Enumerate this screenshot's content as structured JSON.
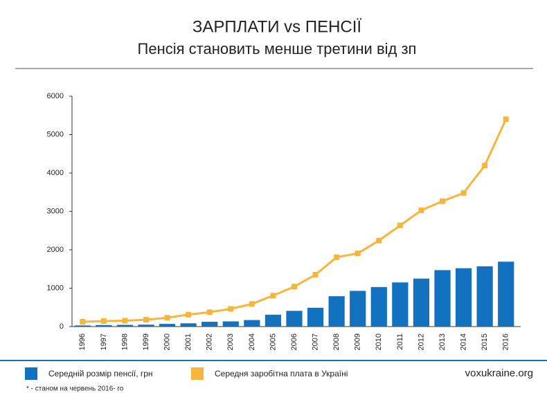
{
  "chart_data": {
    "type": "combo",
    "title": "ЗАРПЛАТИ vs ПЕНСІЇ",
    "subtitle": "Пенсія становить менше третини від зп",
    "categories": [
      "1996",
      "1997",
      "1998",
      "1999",
      "2000",
      "2001",
      "2002",
      "2003",
      "2004",
      "2005",
      "2006",
      "2007",
      "2008",
      "2009",
      "2010",
      "2011",
      "2012",
      "2013",
      "2014",
      "2015",
      "2016"
    ],
    "series": [
      {
        "name": "Середній розмір пенсії, грн",
        "type": "bar",
        "color": "#1372c0",
        "values": [
          30,
          40,
          45,
          50,
          70,
          85,
          125,
          135,
          170,
          310,
          410,
          490,
          790,
          930,
          1030,
          1150,
          1250,
          1470,
          1520,
          1570,
          1690
        ]
      },
      {
        "name": "Середня заробітна плата в Україні",
        "type": "line",
        "color": "#f6b53c",
        "values": [
          126,
          143,
          153,
          178,
          230,
          311,
          376,
          462,
          590,
          806,
          1041,
          1351,
          1806,
          1906,
          2239,
          2633,
          3026,
          3265,
          3480,
          4195,
          5400
        ]
      }
    ],
    "ylim": [
      0,
      6000
    ],
    "yticks": [
      0,
      1000,
      2000,
      3000,
      4000,
      5000,
      6000
    ],
    "source": "voxukraine.org",
    "note": "* - станом на червень 2016- го"
  }
}
